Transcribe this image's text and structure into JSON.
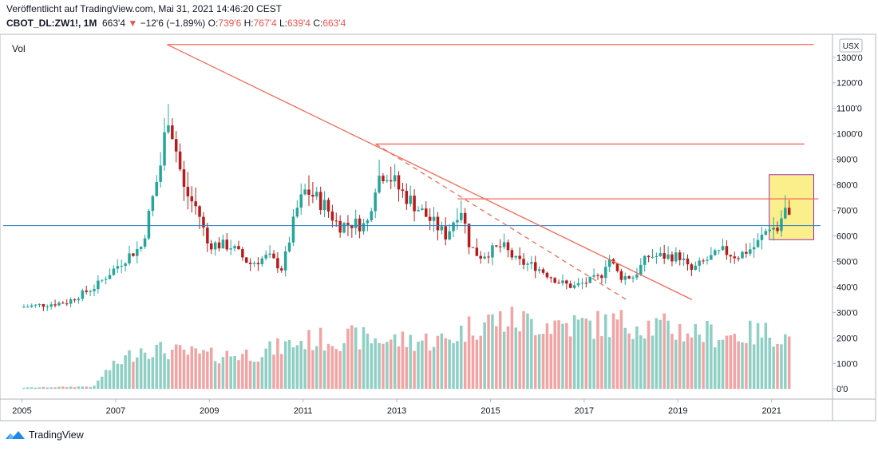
{
  "header": {
    "published": "Veröffentlicht auf TradingView.com, Mai 31, 2021 14:46:20 CEST",
    "symbol": "CBOT_DL:ZW1!, 1M",
    "last": "663'4",
    "change_arrow": "▼",
    "change": "−12'6 (−1.89%)",
    "o_label": "O:",
    "o_value": "739'6",
    "h_label": "H:",
    "h_value": "767'4",
    "l_label": "L:",
    "l_value": "639'4",
    "c_label": "C:",
    "c_value": "663'4"
  },
  "footer": {
    "brand": "TradingView",
    "logo_icon": "tradingview-logo-icon"
  },
  "colors": {
    "up": "#26a69a",
    "down": "#b71c1c",
    "vol_up": "#8fcfc4",
    "vol_down": "#f2a4a4",
    "drawing": "#f06a5a",
    "hline": "#2a7fc1",
    "highlight_fill": "#fbef8c",
    "highlight_border": "#9c27b0"
  },
  "chart_data": {
    "type": "candlestick",
    "title": "",
    "volume_label": "Vol",
    "currency": "USX",
    "x_ticks": [
      "2005",
      "2007",
      "2009",
      "2011",
      "2013",
      "2015",
      "2017",
      "2019",
      "2021"
    ],
    "y_ticks": [
      "0'0",
      "100'0",
      "200'0",
      "300'0",
      "400'0",
      "500'0",
      "600'0",
      "700'0",
      "800'0",
      "900'0",
      "1000'0",
      "1100'0",
      "1200'0",
      "1300'0"
    ],
    "x_range": [
      2004.6,
      2022.3
    ],
    "y_range": [
      -40,
      1390
    ],
    "price_path_approx": [
      [
        2005.0,
        320
      ],
      [
        2006.0,
        340
      ],
      [
        2006.6,
        400
      ],
      [
        2007.3,
        520
      ],
      [
        2007.6,
        560
      ],
      [
        2008.0,
        880
      ],
      [
        2008.17,
        1090
      ],
      [
        2008.5,
        780
      ],
      [
        2008.8,
        700
      ],
      [
        2009.0,
        570
      ],
      [
        2009.5,
        560
      ],
      [
        2009.9,
        490
      ],
      [
        2010.3,
        520
      ],
      [
        2010.6,
        470
      ],
      [
        2010.9,
        700
      ],
      [
        2011.1,
        780
      ],
      [
        2011.5,
        720
      ],
      [
        2011.8,
        640
      ],
      [
        2012.1,
        650
      ],
      [
        2012.4,
        640
      ],
      [
        2012.6,
        820
      ],
      [
        2012.8,
        860
      ],
      [
        2013.1,
        780
      ],
      [
        2013.6,
        690
      ],
      [
        2014.1,
        600
      ],
      [
        2014.4,
        720
      ],
      [
        2014.6,
        560
      ],
      [
        2014.8,
        520
      ],
      [
        2015.3,
        560
      ],
      [
        2015.6,
        500
      ],
      [
        2016.0,
        480
      ],
      [
        2016.5,
        420
      ],
      [
        2016.8,
        400
      ],
      [
        2017.4,
        440
      ],
      [
        2017.55,
        520
      ],
      [
        2017.8,
        440
      ],
      [
        2018.1,
        440
      ],
      [
        2018.4,
        520
      ],
      [
        2018.7,
        520
      ],
      [
        2019.1,
        520
      ],
      [
        2019.3,
        460
      ],
      [
        2019.6,
        500
      ],
      [
        2020.0,
        540
      ],
      [
        2020.3,
        520
      ],
      [
        2020.7,
        560
      ],
      [
        2021.0,
        640
      ],
      [
        2021.2,
        620
      ],
      [
        2021.3,
        720
      ],
      [
        2021.4,
        663
      ]
    ],
    "volume_path_approx": [
      [
        2005.0,
        5
      ],
      [
        2006.5,
        10
      ],
      [
        2006.7,
        60
      ],
      [
        2007.0,
        100
      ],
      [
        2007.5,
        160
      ],
      [
        2008.0,
        150
      ],
      [
        2009.0,
        130
      ],
      [
        2010.0,
        140
      ],
      [
        2011.0,
        190
      ],
      [
        2012.0,
        200
      ],
      [
        2013.0,
        190
      ],
      [
        2014.0,
        190
      ],
      [
        2014.6,
        250
      ],
      [
        2015.0,
        270
      ],
      [
        2016.0,
        260
      ],
      [
        2017.0,
        250
      ],
      [
        2018.0,
        260
      ],
      [
        2019.0,
        230
      ],
      [
        2020.0,
        210
      ],
      [
        2021.0,
        220
      ],
      [
        2021.4,
        190
      ]
    ],
    "horizontal_line": 640,
    "drawings": [
      {
        "kind": "hline",
        "from": [
          2008.1,
          1350
        ],
        "to": [
          2021.9,
          1350
        ]
      },
      {
        "kind": "hline",
        "from": [
          2012.55,
          960
        ],
        "to": [
          2021.7,
          960
        ]
      },
      {
        "kind": "hline",
        "from": [
          2014.3,
          745
        ],
        "to": [
          2022.0,
          745
        ]
      },
      {
        "kind": "trend",
        "from": [
          2008.1,
          1350
        ],
        "to": [
          2019.3,
          350
        ]
      },
      {
        "kind": "trend_dashed",
        "from": [
          2012.55,
          960
        ],
        "to": [
          2017.9,
          350
        ]
      }
    ],
    "highlight_box": {
      "x": [
        2020.95,
        2021.9
      ],
      "y": [
        585,
        840
      ]
    },
    "grid": false
  }
}
